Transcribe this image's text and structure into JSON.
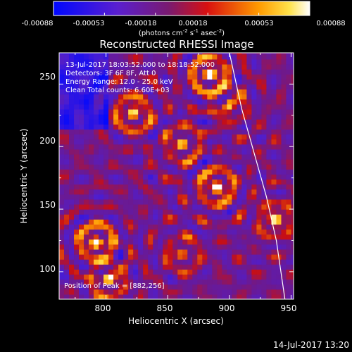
{
  "colorbar": {
    "ticks": [
      "-0.00088",
      "-0.00053",
      "-0.00018",
      "0.00018",
      "0.00053",
      "0.00088"
    ],
    "units_main": "(photons cm",
    "units_sup1": "-2",
    "units_mid": " s",
    "units_sup2": "-1",
    "units_end": " asec",
    "units_sup3": "-2",
    "units_close": ")"
  },
  "chart_data": {
    "type": "heatmap",
    "title": "Reconstructed RHESSI Image",
    "xlabel": "Heliocentric X (arcsec)",
    "ylabel": "Heliocentric Y (arcsec)",
    "xlim": [
      762,
      952
    ],
    "ylim": [
      78,
      275
    ],
    "x_ticks": [
      "800",
      "850",
      "900",
      "950"
    ],
    "y_ticks": [
      "100",
      "150",
      "200",
      "250"
    ],
    "value_range": [
      -0.00088,
      0.00088
    ],
    "colormap": "blue-purple-red-yellow-white",
    "annotations": [
      "13-Jul-2017 18:03:52.000 to 18:18:52.000",
      "Detectors: 3F 6F 8F, Att 0",
      "Energy Range: 12.0 - 25.0 keV",
      "Clean     Total counts: 6.60E+03"
    ],
    "peak_label": "Position of Peak = [882,256]",
    "peak": [
      882,
      256
    ],
    "bright_sources": [
      {
        "x": 882,
        "y": 256,
        "intensity": 1.0
      },
      {
        "x": 888,
        "y": 166,
        "intensity": 0.9
      },
      {
        "x": 790,
        "y": 122,
        "intensity": 0.95
      },
      {
        "x": 820,
        "y": 225,
        "intensity": 0.8
      },
      {
        "x": 860,
        "y": 200,
        "intensity": 0.6
      },
      {
        "x": 898,
        "y": 232,
        "intensity": 0.55
      },
      {
        "x": 800,
        "y": 92,
        "intensity": 0.7
      },
      {
        "x": 935,
        "y": 140,
        "intensity": 0.75
      },
      {
        "x": 860,
        "y": 112,
        "intensity": 0.5
      }
    ],
    "limb": [
      [
        900,
        275
      ],
      [
        910,
        230
      ],
      [
        920,
        195
      ],
      [
        930,
        160
      ],
      [
        938,
        125
      ],
      [
        945,
        78
      ]
    ]
  },
  "footer": {
    "timestamp": "14-Jul-2017 13:20"
  }
}
